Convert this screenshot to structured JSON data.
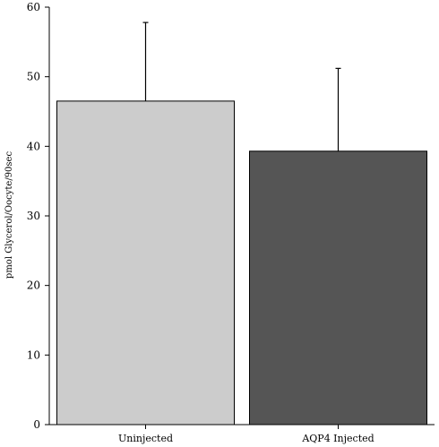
{
  "chart_data": {
    "type": "bar",
    "categories": [
      "Uninjected",
      "AQP4 Injected"
    ],
    "values": [
      46.5,
      39.3
    ],
    "errors": [
      11.3,
      11.9
    ],
    "colors": [
      "#cccccc",
      "#555555"
    ],
    "ylabel": "pmol Glycerol/Oocyte/90sec",
    "xlabel": "",
    "ylim": [
      0,
      60
    ],
    "yticks": [
      0,
      10,
      20,
      30,
      40,
      50,
      60
    ],
    "grid": false
  }
}
